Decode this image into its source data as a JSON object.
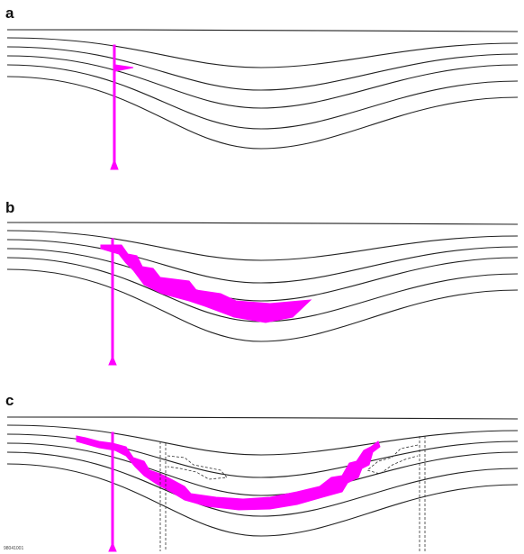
{
  "panels": [
    {
      "label": "a"
    },
    {
      "label": "b"
    },
    {
      "label": "c"
    }
  ],
  "figure_id": "98041001"
}
